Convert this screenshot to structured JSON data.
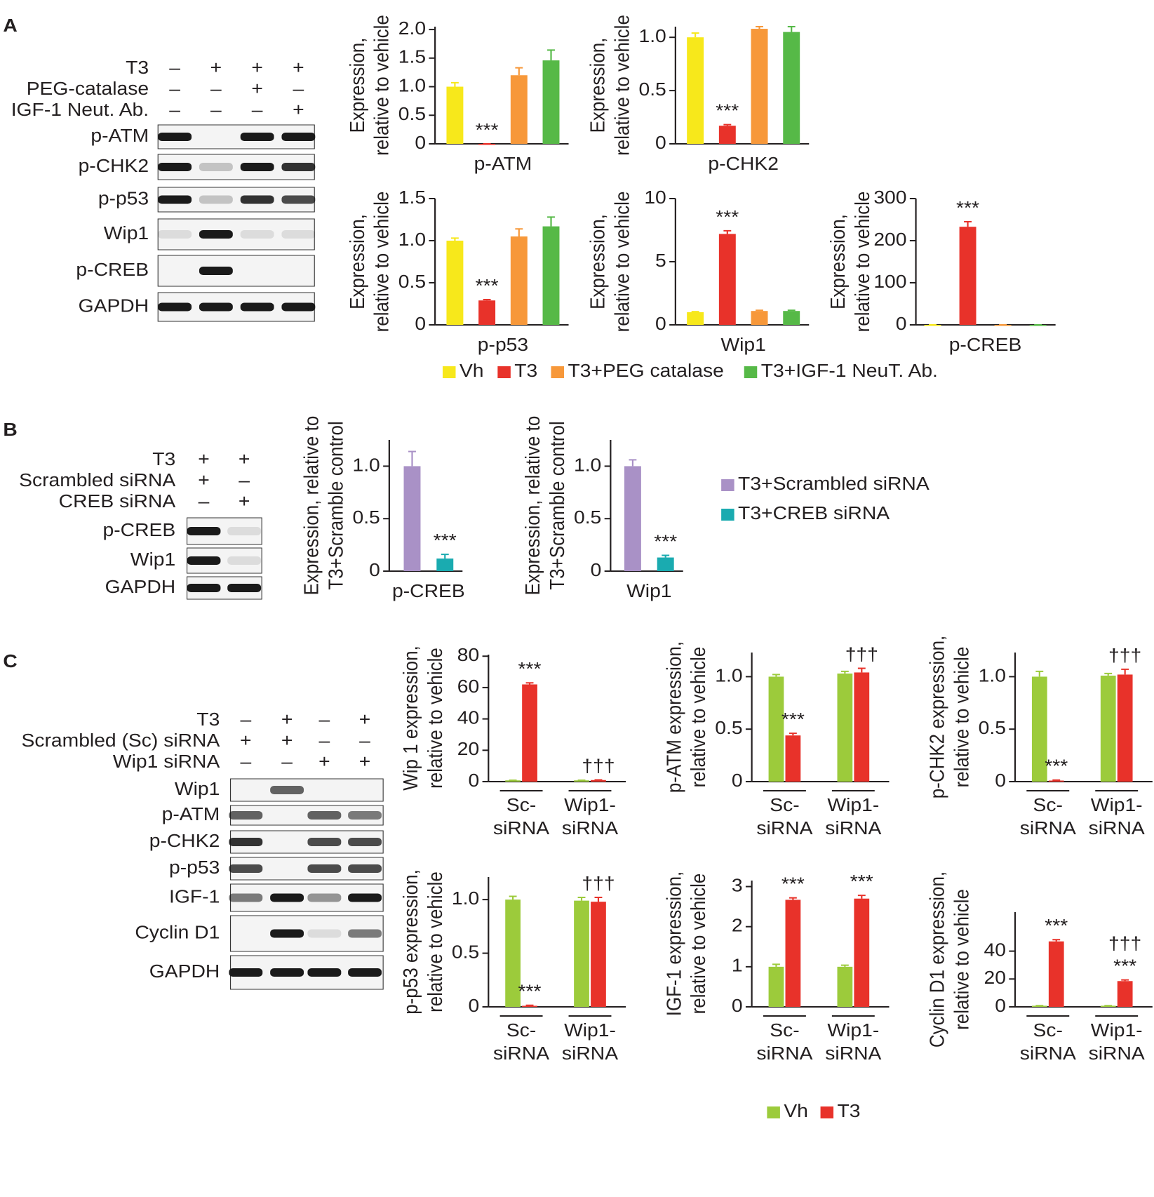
{
  "panel_labels": [
    "A",
    "B",
    "C"
  ],
  "blots": [
    {
      "conditions": [
        {
          "label": "T3",
          "signs": [
            "–",
            "+",
            "+",
            "+"
          ]
        },
        {
          "label": "PEG-catalase",
          "signs": [
            "–",
            "–",
            "+",
            "–"
          ]
        },
        {
          "label": "IGF-1 Neut. Ab.",
          "signs": [
            "–",
            "–",
            "–",
            "+"
          ]
        }
      ],
      "proteins": [
        "p-ATM",
        "p-CHK2",
        "p-p53",
        "Wip1",
        "p-CREB",
        "GAPDH"
      ]
    },
    {
      "conditions": [
        {
          "label": "T3",
          "signs": [
            "+",
            "+"
          ]
        },
        {
          "label": "Scrambled siRNA",
          "signs": [
            "+",
            "–"
          ]
        },
        {
          "label": "CREB siRNA",
          "signs": [
            "–",
            "+"
          ]
        }
      ],
      "proteins": [
        "p-CREB",
        "Wip1",
        "GAPDH"
      ]
    },
    {
      "conditions": [
        {
          "label": "T3",
          "signs": [
            "–",
            "+",
            "–",
            "+"
          ]
        },
        {
          "label": "Scrambled (Sc) siRNA",
          "signs": [
            "+",
            "+",
            "–",
            "–"
          ]
        },
        {
          "label": "Wip1 siRNA",
          "signs": [
            "–",
            "–",
            "+",
            "+"
          ]
        }
      ],
      "proteins": [
        "Wip1",
        "p-ATM",
        "p-CHK2",
        "p-p53",
        "IGF-1",
        "Cyclin D1",
        "GAPDH"
      ]
    }
  ],
  "legends": [
    [
      {
        "name": "Vh",
        "color": "#f7e81b"
      },
      {
        "name": "T3",
        "color": "#e8322a"
      },
      {
        "name": "T3+PEG catalase",
        "color": "#f7983a"
      },
      {
        "name": "T3+IGF-1 NeuT. Ab.",
        "color": "#56b947"
      }
    ],
    [
      {
        "name": "T3+Scrambled siRNA",
        "color": "#a991c6"
      },
      {
        "name": "T3+CREB siRNA",
        "color": "#1aabb0"
      }
    ],
    [
      {
        "name": "Vh",
        "color": "#9ccb3b"
      },
      {
        "name": "T3",
        "color": "#e8322a"
      }
    ]
  ],
  "chart_data": [
    {
      "type": "bar",
      "ylabel": [
        "Expression,",
        "relative to vehicle"
      ],
      "xlabel": "p-ATM",
      "ylim": [
        0,
        2.05
      ],
      "yticks": [
        0,
        0.5,
        {
          "value": 1,
          "label": "1.0"
        },
        1.5,
        {
          "value": 2,
          "label": "2.0"
        }
      ],
      "series": [
        {
          "colors": [
            "#f7e81b",
            "#e8322a",
            "#f7983a",
            "#56b947"
          ],
          "values": [
            1.0,
            0,
            1.2,
            1.46
          ],
          "errors": [
            0.07,
            0,
            0.13,
            0.18
          ],
          "marks": [
            null,
            [
              "***"
            ],
            null,
            null
          ]
        }
      ]
    },
    {
      "type": "bar",
      "ylabel": [
        "Expression,",
        "relative to vehicle"
      ],
      "xlabel": "p-CHK2",
      "ylim": [
        0,
        1.1
      ],
      "yticks": [
        0,
        0.5,
        {
          "value": 1,
          "label": "1.0"
        }
      ],
      "series": [
        {
          "colors": [
            "#f7e81b",
            "#e8322a",
            "#f7983a",
            "#56b947"
          ],
          "values": [
            1.0,
            0.17,
            1.08,
            1.05
          ],
          "errors": [
            0.04,
            0.01,
            0.02,
            0.05
          ],
          "marks": [
            null,
            [
              "***"
            ],
            null,
            null
          ]
        }
      ]
    },
    {
      "type": "bar",
      "ylabel": [
        "Expression,",
        "relative to vehicle"
      ],
      "xlabel": "p-p53",
      "ylim": [
        0,
        1.5
      ],
      "yticks": [
        0,
        0.5,
        {
          "value": 1,
          "label": "1.0"
        },
        1.5
      ],
      "series": [
        {
          "colors": [
            "#f7e81b",
            "#e8322a",
            "#f7983a",
            "#56b947"
          ],
          "values": [
            1.0,
            0.29,
            1.05,
            1.17
          ],
          "errors": [
            0.03,
            0.01,
            0.09,
            0.11
          ],
          "marks": [
            null,
            [
              "***"
            ],
            null,
            null
          ]
        }
      ]
    },
    {
      "type": "bar",
      "ylabel": [
        "Expression,",
        "relative to vehicle"
      ],
      "xlabel": "Wip1",
      "ylim": [
        0,
        10
      ],
      "yticks": [
        0,
        5,
        10
      ],
      "series": [
        {
          "colors": [
            "#f7e81b",
            "#e8322a",
            "#f7983a",
            "#56b947"
          ],
          "values": [
            1.0,
            7.2,
            1.1,
            1.1
          ],
          "errors": [
            0.05,
            0.25,
            0.05,
            0.05
          ],
          "marks": [
            null,
            [
              "***"
            ],
            null,
            null
          ]
        }
      ]
    },
    {
      "type": "bar",
      "ylabel": [
        "Expression,",
        "relative to vehicle"
      ],
      "xlabel": "p-CREB",
      "ylim": [
        0,
        300
      ],
      "yticks": [
        0,
        100,
        200,
        300
      ],
      "series": [
        {
          "colors": [
            "#f7e81b",
            "#e8322a",
            "#f7983a",
            "#56b947"
          ],
          "values": [
            0,
            233,
            0,
            0
          ],
          "errors": [
            0,
            12,
            0,
            0
          ],
          "marks": [
            null,
            [
              "***"
            ],
            null,
            null
          ]
        }
      ]
    },
    {
      "type": "bar",
      "ylabel": [
        "Expression, relative to",
        "T3+Scramble control"
      ],
      "xlabel": "p-CREB",
      "ylim": [
        0,
        1.25
      ],
      "yticks": [
        0,
        0.5,
        {
          "value": 1,
          "label": "1.0"
        }
      ],
      "series": [
        {
          "colors": [
            "#a991c6",
            "#1aabb0"
          ],
          "values": [
            1.0,
            0.12
          ],
          "errors": [
            0.14,
            0.04
          ],
          "marks": [
            null,
            [
              "***"
            ]
          ]
        }
      ]
    },
    {
      "type": "bar",
      "ylabel": [
        "Expression, relative to",
        "T3+Scramble control"
      ],
      "xlabel": "Wip1",
      "ylim": [
        0,
        1.25
      ],
      "yticks": [
        0,
        0.5,
        {
          "value": 1,
          "label": "1.0"
        }
      ],
      "series": [
        {
          "colors": [
            "#a991c6",
            "#1aabb0"
          ],
          "values": [
            1.0,
            0.13
          ],
          "errors": [
            0.06,
            0.02
          ],
          "marks": [
            null,
            [
              "***"
            ]
          ]
        }
      ]
    },
    {
      "type": "grouped_bar",
      "ylabel": [
        "Wip 1 expression,",
        "relative to vehicle"
      ],
      "categories": [
        [
          "Sc-",
          "siRNA"
        ],
        [
          "Wip1-",
          "siRNA"
        ]
      ],
      "ylim": [
        0,
        81
      ],
      "yticks": [
        0,
        20,
        40,
        60,
        80
      ],
      "series": [
        {
          "color": "#9ccb3b",
          "values": [
            0.8,
            0.8
          ],
          "errors": [
            0.1,
            0.1
          ],
          "marks": [
            null,
            null
          ]
        },
        {
          "color": "#e8322a",
          "values": [
            62,
            1.0
          ],
          "errors": [
            1,
            0.1
          ],
          "marks": [
            [
              "***"
            ],
            [
              "†††"
            ]
          ]
        }
      ]
    },
    {
      "type": "grouped_bar",
      "ylabel": [
        "p-ATM expression,",
        "relative to vehicle"
      ],
      "categories": [
        [
          "Sc-",
          "siRNA"
        ],
        [
          "Wip1-",
          "siRNA"
        ]
      ],
      "ylim": [
        0,
        1.23
      ],
      "yticks": [
        0,
        0.5,
        {
          "value": 1,
          "label": "1.0"
        }
      ],
      "series": [
        {
          "color": "#9ccb3b",
          "values": [
            1.0,
            1.03
          ],
          "errors": [
            0.02,
            0.02
          ],
          "marks": [
            null,
            null
          ]
        },
        {
          "color": "#e8322a",
          "values": [
            0.44,
            1.04
          ],
          "errors": [
            0.02,
            0.04
          ],
          "marks": [
            [
              "***"
            ],
            [
              "†††"
            ]
          ]
        }
      ]
    },
    {
      "type": "grouped_bar",
      "ylabel": [
        "p-CHK2 expression,",
        "relative to vehicle"
      ],
      "categories": [
        [
          "Sc-",
          "siRNA"
        ],
        [
          "Wip1-",
          "siRNA"
        ]
      ],
      "ylim": [
        0,
        1.23
      ],
      "yticks": [
        0,
        0.5,
        {
          "value": 1,
          "label": "1.0"
        }
      ],
      "series": [
        {
          "color": "#9ccb3b",
          "values": [
            1.0,
            1.01
          ],
          "errors": [
            0.05,
            0.02
          ],
          "marks": [
            null,
            null
          ]
        },
        {
          "color": "#e8322a",
          "values": [
            0.01,
            1.02
          ],
          "errors": [
            0.005,
            0.05
          ],
          "marks": [
            [
              "***"
            ],
            [
              "†††"
            ]
          ]
        }
      ]
    },
    {
      "type": "grouped_bar",
      "ylabel": [
        "p-p53 expression,",
        "relative to vehicle"
      ],
      "categories": [
        [
          "Sc-",
          "siRNA"
        ],
        [
          "Wip1-",
          "siRNA"
        ]
      ],
      "ylim": [
        0,
        1.21
      ],
      "yticks": [
        0,
        0.5,
        {
          "value": 1,
          "label": "1.0"
        }
      ],
      "series": [
        {
          "color": "#9ccb3b",
          "values": [
            1.0,
            0.99
          ],
          "errors": [
            0.03,
            0.03
          ],
          "marks": [
            null,
            null
          ]
        },
        {
          "color": "#e8322a",
          "values": [
            0.01,
            0.98
          ],
          "errors": [
            0.005,
            0.04
          ],
          "marks": [
            [
              "***"
            ],
            [
              "†††"
            ]
          ]
        }
      ]
    },
    {
      "type": "grouped_bar",
      "ylabel": [
        "IGF-1 expression,",
        "relative to vehicle"
      ],
      "categories": [
        [
          "Sc-",
          "siRNA"
        ],
        [
          "Wip1-",
          "siRNA"
        ]
      ],
      "ylim": [
        0,
        3.15
      ],
      "yticks": [
        0,
        1,
        2,
        3
      ],
      "series": [
        {
          "color": "#9ccb3b",
          "values": [
            1.0,
            1.0
          ],
          "errors": [
            0.06,
            0.04
          ],
          "marks": [
            null,
            null
          ]
        },
        {
          "color": "#e8322a",
          "values": [
            2.67,
            2.7
          ],
          "errors": [
            0.05,
            0.08
          ],
          "marks": [
            [
              "***"
            ],
            [
              "***"
            ]
          ]
        }
      ]
    },
    {
      "type": "grouped_bar",
      "ylabel": [
        "Cyclin D1 expression,",
        "relative to vehicle"
      ],
      "categories": [
        [
          "Sc-",
          "siRNA"
        ],
        [
          "Wip1-",
          "siRNA"
        ]
      ],
      "ylim": [
        0,
        68
      ],
      "yticks": [
        0,
        20,
        40
      ],
      "series": [
        {
          "color": "#9ccb3b",
          "values": [
            0.8,
            0.8
          ],
          "errors": [
            0.1,
            0.1
          ],
          "marks": [
            null,
            null
          ]
        },
        {
          "color": "#e8322a",
          "values": [
            47,
            18.5
          ],
          "errors": [
            1.2,
            0.8
          ],
          "marks": [
            [
              "***"
            ],
            [
              "***",
              "†††"
            ]
          ]
        }
      ]
    }
  ]
}
